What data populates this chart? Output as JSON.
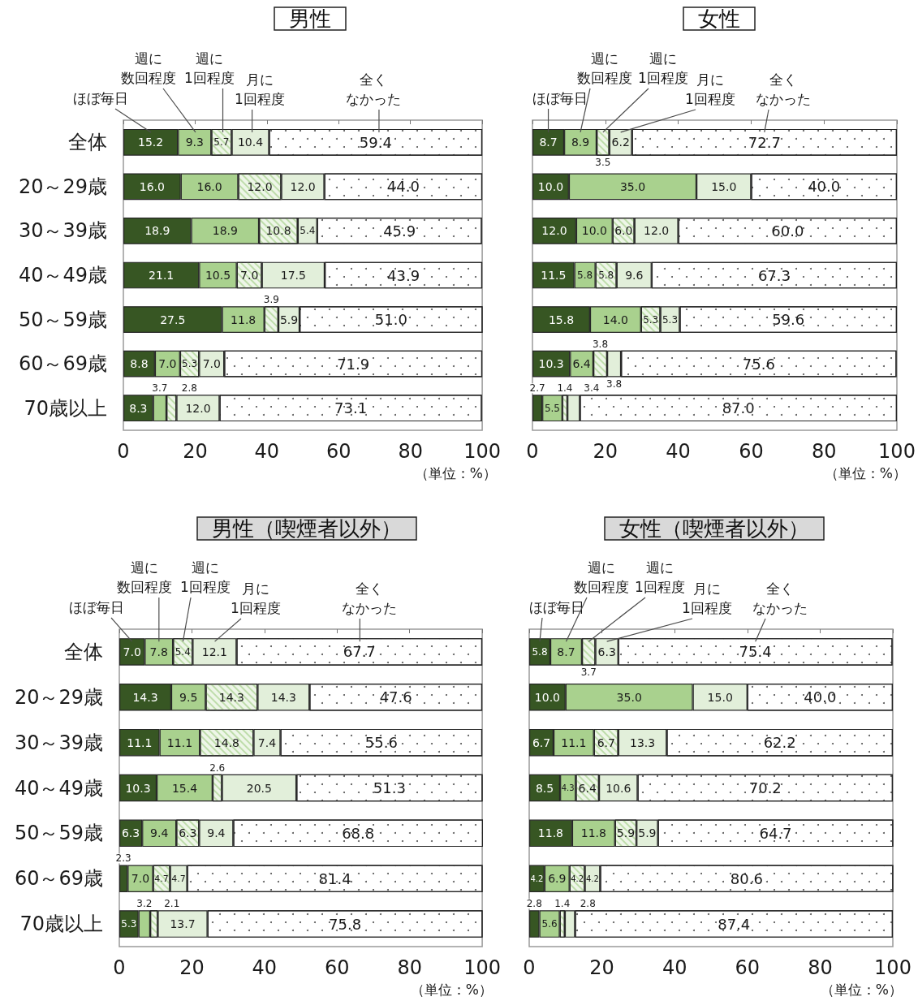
{
  "chart_data": [
    {
      "type": "bar",
      "title": "男性",
      "orientation": "horizontal",
      "stacked": true,
      "categories": [
        "全体",
        "20～29歳",
        "30～39歳",
        "40～49歳",
        "50～59歳",
        "60～69歳",
        "70歳以上"
      ],
      "series": [
        {
          "name": "ほぼ毎日",
          "color": "#375623",
          "values": [
            15.2,
            16.0,
            18.9,
            21.1,
            27.5,
            8.8,
            8.3
          ],
          "value_labels": [
            "15.2",
            "16.0",
            "18.9",
            "21.1",
            "27.5",
            "8.8",
            "8.3"
          ]
        },
        {
          "name": "週に数回程度",
          "color": "#a9d18e",
          "values": [
            9.3,
            16.0,
            18.9,
            10.5,
            11.8,
            7.0,
            3.7
          ],
          "value_labels": [
            "9.3",
            "16.0",
            "18.9",
            "10.5",
            "11.8",
            "7.0",
            "3.7"
          ]
        },
        {
          "name": "週に1回程度",
          "color": "#eef6e8",
          "values": [
            5.7,
            12.0,
            10.8,
            7.0,
            3.9,
            5.3,
            2.8
          ],
          "value_labels": [
            "5.7",
            "12.0",
            "10.8",
            "7.0",
            "3.9",
            "5.3",
            "2.8"
          ]
        },
        {
          "name": "月に1回程度",
          "color": "#e2efda",
          "values": [
            10.4,
            12.0,
            5.4,
            17.5,
            5.9,
            7.0,
            12.0
          ],
          "value_labels": [
            "10.4",
            "12.0",
            "5.4",
            "17.5",
            "5.9",
            "7.0",
            "12.0"
          ]
        },
        {
          "name": "全くなかった",
          "color": "#ffffff",
          "values": [
            59.4,
            44.0,
            45.9,
            43.9,
            51.0,
            71.9,
            73.1
          ],
          "value_labels": [
            "59.4",
            "44.0",
            "45.9",
            "43.9",
            "51.0",
            "71.9",
            "73.1"
          ]
        }
      ],
      "xlim": [
        0,
        100
      ],
      "xticks": [
        0,
        20,
        40,
        60,
        80,
        100
      ],
      "annotations": [
        "（単位：%）"
      ]
    },
    {
      "type": "bar",
      "title": "女性",
      "orientation": "horizontal",
      "stacked": true,
      "categories": [
        "全体",
        "20～29歳",
        "30～39歳",
        "40～49歳",
        "50～59歳",
        "60～69歳",
        "70歳以上"
      ],
      "series": [
        {
          "name": "ほぼ毎日",
          "color": "#375623",
          "values": [
            8.7,
            10.0,
            12.0,
            11.5,
            15.8,
            10.3,
            2.7
          ],
          "value_labels": [
            "8.7",
            "10.0",
            "12.0",
            "11.5",
            "15.8",
            "10.3",
            "2.7"
          ]
        },
        {
          "name": "週に数回程度",
          "color": "#a9d18e",
          "values": [
            8.9,
            35.0,
            10.0,
            5.8,
            14.0,
            6.4,
            5.5
          ],
          "value_labels": [
            "8.9",
            "35.0",
            "10.0",
            "5.8",
            "14.0",
            "6.4",
            "5.5"
          ]
        },
        {
          "name": "週に1回程度",
          "color": "#eef6e8",
          "values": [
            3.5,
            null,
            6.0,
            5.8,
            5.3,
            3.8,
            1.4
          ],
          "value_labels": [
            "3.5",
            null,
            "6.0",
            "5.8",
            "5.3",
            "3.8",
            "1.4"
          ]
        },
        {
          "name": "月に1回程度",
          "color": "#e2efda",
          "values": [
            6.2,
            15.0,
            12.0,
            9.6,
            5.3,
            3.8,
            3.4
          ],
          "value_labels": [
            "6.2",
            "15.0",
            "12.0",
            "9.6",
            "5.3",
            "3.8",
            "3.4"
          ]
        },
        {
          "name": "全くなかった",
          "color": "#ffffff",
          "values": [
            72.7,
            40.0,
            60.0,
            67.3,
            59.6,
            75.6,
            87.0
          ],
          "value_labels": [
            "72.7",
            "40.0",
            "60.0",
            "67.3",
            "59.6",
            "75.6",
            "87.0"
          ]
        }
      ],
      "xlim": [
        0,
        100
      ],
      "xticks": [
        0,
        20,
        40,
        60,
        80,
        100
      ],
      "tick_labels": "x",
      "annotations": [
        "（単位：%）"
      ]
    },
    {
      "type": "bar",
      "title": "男性（喫煙者以外）",
      "orientation": "horizontal",
      "stacked": true,
      "categories": [
        "全体",
        "20～29歳",
        "30～39歳",
        "40～49歳",
        "50～59歳",
        "60～69歳",
        "70歳以上"
      ],
      "series": [
        {
          "name": "ほぼ毎日",
          "color": "#375623",
          "values": [
            7.0,
            14.3,
            11.1,
            10.3,
            6.3,
            2.3,
            5.3
          ],
          "value_labels": [
            "7.0",
            "14.3",
            "11.1",
            "10.3",
            "6.3",
            "2.3",
            "5.3"
          ]
        },
        {
          "name": "週に数回程度",
          "color": "#a9d18e",
          "values": [
            7.8,
            9.5,
            11.1,
            15.4,
            9.4,
            7.0,
            3.2
          ],
          "value_labels": [
            "7.8",
            "9.5",
            "11.1",
            "15.4",
            "9.4",
            "7.0",
            "3.2"
          ]
        },
        {
          "name": "週に1回程度",
          "color": "#eef6e8",
          "values": [
            5.4,
            14.3,
            14.8,
            2.6,
            6.3,
            4.7,
            2.1
          ],
          "value_labels": [
            "5.4",
            "14.3",
            "14.8",
            "2.6",
            "6.3",
            "4.7",
            "2.1"
          ]
        },
        {
          "name": "月に1回程度",
          "color": "#e2efda",
          "values": [
            12.1,
            14.3,
            7.4,
            20.5,
            9.4,
            4.7,
            13.7
          ],
          "value_labels": [
            "12.1",
            "14.3",
            "7.4",
            "20.5",
            "9.4",
            "4.7",
            "13.7"
          ]
        },
        {
          "name": "全くなかった",
          "color": "#ffffff",
          "values": [
            67.7,
            47.6,
            55.6,
            51.3,
            68.8,
            81.4,
            75.8
          ],
          "value_labels": [
            "67.7",
            "47.6",
            "55.6",
            "51.3",
            "68.8",
            "81.4",
            "75.8"
          ]
        }
      ],
      "xlim": [
        0,
        100
      ],
      "xticks": [
        0,
        20,
        40,
        60,
        80,
        100
      ],
      "annotations": [
        "（単位：%）"
      ]
    },
    {
      "type": "bar",
      "title": "女性（喫煙者以外）",
      "orientation": "horizontal",
      "stacked": true,
      "categories": [
        "全体",
        "20～29歳",
        "30～39歳",
        "40～49歳",
        "50～59歳",
        "60～69歳",
        "70歳以上"
      ],
      "series": [
        {
          "name": "ほぼ毎日",
          "color": "#375623",
          "values": [
            5.8,
            10.0,
            6.7,
            8.5,
            11.8,
            4.2,
            2.8
          ],
          "value_labels": [
            "5.8",
            "10.0",
            "6.7",
            "8.5",
            "11.8",
            "4.2",
            "2.8"
          ]
        },
        {
          "name": "週に数回程度",
          "color": "#a9d18e",
          "values": [
            8.7,
            35.0,
            11.1,
            4.3,
            11.8,
            6.9,
            5.6
          ],
          "value_labels": [
            "8.7",
            "35.0",
            "11.1",
            "4.3",
            "11.8",
            "6.9",
            "5.6"
          ]
        },
        {
          "name": "週に1回程度",
          "color": "#eef6e8",
          "values": [
            3.7,
            null,
            6.7,
            6.4,
            5.9,
            4.2,
            1.4
          ],
          "value_labels": [
            "3.7",
            null,
            "6.7",
            "6.4",
            "5.9",
            "4.2",
            "1.4"
          ]
        },
        {
          "name": "月に1回程度",
          "color": "#e2efda",
          "values": [
            6.3,
            15.0,
            13.3,
            10.6,
            5.9,
            4.2,
            2.8
          ],
          "value_labels": [
            "6.3",
            "15.0",
            "13.3",
            "10.6",
            "5.9",
            "4.2",
            "2.8"
          ]
        },
        {
          "name": "全くなかった",
          "color": "#ffffff",
          "values": [
            75.4,
            40.0,
            62.2,
            70.2,
            64.7,
            80.6,
            87.4
          ],
          "value_labels": [
            "75.4",
            "40.0",
            "62.2",
            "70.2",
            "64.7",
            "80.6",
            "87.4"
          ]
        }
      ],
      "xlim": [
        0,
        100
      ],
      "xticks": [
        0,
        20,
        40,
        60,
        80,
        100
      ],
      "tick_labels": "x",
      "annotations": [
        "（単位：%）"
      ]
    }
  ]
}
